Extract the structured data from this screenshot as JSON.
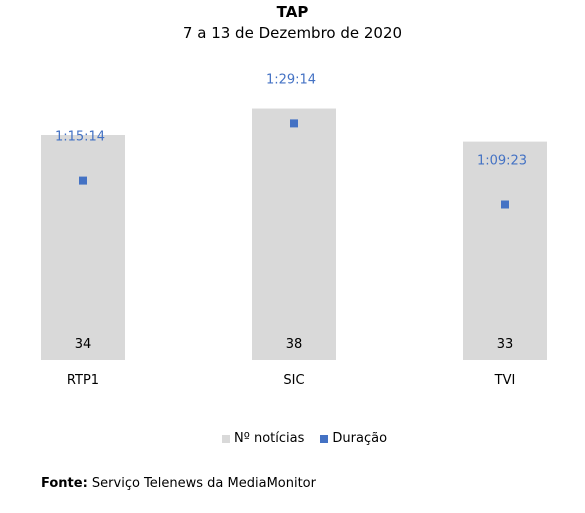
{
  "chart_data": {
    "type": "bar",
    "title": "TAP",
    "subtitle": "7 a 13 de Dezembro de 2020",
    "categories": [
      "RTP1",
      "SIC",
      "TVI"
    ],
    "series": [
      {
        "name": "Nº notícias",
        "type": "bar",
        "values": [
          34,
          38,
          33
        ],
        "color": "#d9d9d9"
      },
      {
        "name": "Duração",
        "type": "scatter",
        "values": [
          "1:15:14",
          "1:29:14",
          "1:09:23"
        ],
        "seconds": [
          4514,
          5354,
          4163
        ],
        "color": "#4472c4"
      }
    ],
    "bar_label_color": "#000000",
    "duration_label_color": "#4472c4",
    "legend_position": "bottom",
    "grid": false
  },
  "source": {
    "label": "Fonte",
    "text": "Serviço Telenews da MediaMonitor"
  }
}
